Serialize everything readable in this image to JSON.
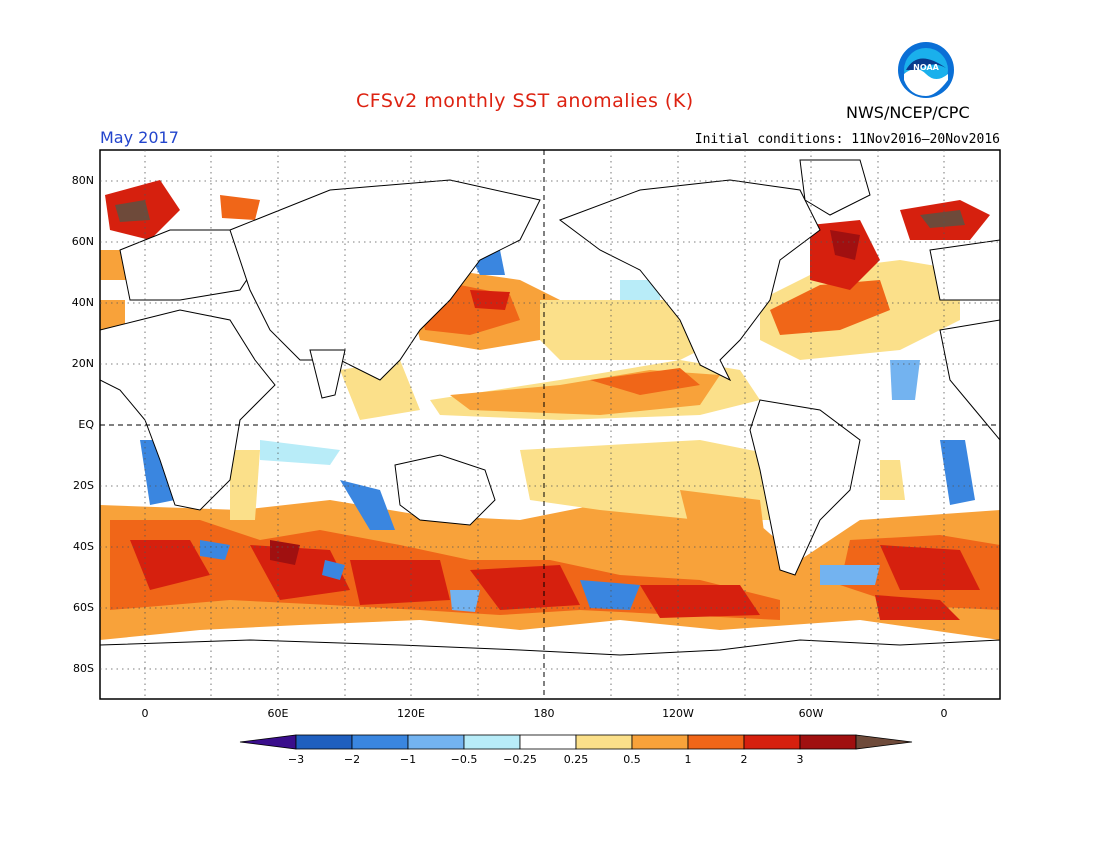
{
  "title": "CFSv2 monthly SST anomalies (K)",
  "agency": "NWS/NCEP/CPC",
  "logo_text": "NOAA",
  "month": "May 2017",
  "initial_conditions": "Initial conditions: 11Nov2016–20Nov2016",
  "lat_labels": [
    "80N",
    "60N",
    "40N",
    "20N",
    "EQ",
    "20S",
    "40S",
    "60S",
    "80S"
  ],
  "lon_labels": [
    "0",
    "60E",
    "120E",
    "180",
    "120W",
    "60W",
    "0"
  ],
  "colorbar": {
    "labels": [
      "−3",
      "−2",
      "−1",
      "−0.5",
      "−0.25",
      "0.25",
      "0.5",
      "1",
      "2",
      "3"
    ],
    "colors": [
      "#3a0e8c",
      "#1f5fbf",
      "#3a86e0",
      "#73b3f0",
      "#b8ecf8",
      "#ffffff",
      "#fbe08a",
      "#f8a23a",
      "#f06618",
      "#d6200e",
      "#a01010",
      "#6e4a3a"
    ]
  }
}
